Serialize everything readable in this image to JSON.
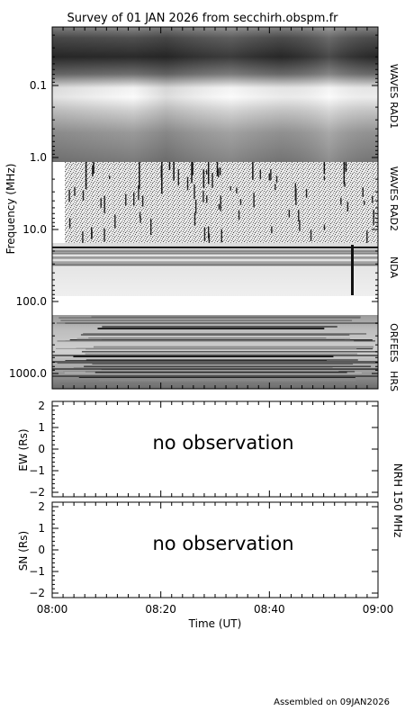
{
  "title": "Survey of 01 JAN 2026 from secchirh.obspm.fr",
  "footer": "Assembled on 09JAN2026",
  "chart_data": [
    {
      "type": "heatmap",
      "ylabel": "Frequency (MHz)",
      "y_scale": "log",
      "yticks": [
        "0.1",
        "1.0",
        "10.0",
        "100.0",
        "1000.0"
      ],
      "bands": [
        {
          "name": "WAVES RAD1",
          "freq_range_mhz": [
            0.02,
            1.0
          ]
        },
        {
          "name": "WAVES RAD2",
          "freq_range_mhz": [
            1.0,
            14.0
          ]
        },
        {
          "name": "NDA",
          "freq_range_mhz": [
            14.0,
            80.0
          ]
        },
        {
          "name": "ORFEES",
          "freq_range_mhz": [
            140.0,
            1000.0
          ]
        },
        {
          "name": "HRS",
          "freq_range_mhz": [
            1000.0,
            2000.0
          ]
        }
      ],
      "notable_features": [
        {
          "band": "NDA",
          "time": "08:55",
          "description": "dark vertical burst"
        },
        {
          "band": "WAVES RAD1",
          "time": "08:29",
          "description": "dark spot"
        }
      ],
      "colors": {
        "background": "#ffffff",
        "missing": "#ffffff"
      }
    },
    {
      "type": "line",
      "panel": "NRH 150 MHz",
      "ylabel": "EW (Rs)",
      "ylim": [
        -2,
        2
      ],
      "yticks": [
        "2",
        "1",
        "0",
        "−1",
        "−2"
      ],
      "annotation": "no observation",
      "series": []
    },
    {
      "type": "line",
      "panel": "NRH 150 MHz",
      "ylabel": "SN (Rs)",
      "ylim": [
        -2,
        2
      ],
      "yticks": [
        "2",
        "1",
        "0",
        "−1",
        "−2"
      ],
      "annotation": "no observation",
      "series": []
    }
  ],
  "time_axis": {
    "xlabel": "Time (UT)",
    "ticks": [
      "08:00",
      "08:20",
      "08:40",
      "09:00"
    ]
  },
  "nrh_label": "NRH 150 MHz",
  "annotation_color": "#a0a0a0"
}
